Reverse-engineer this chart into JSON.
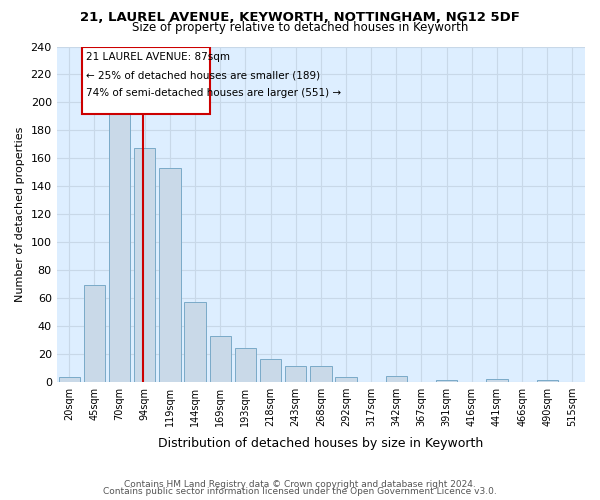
{
  "title1": "21, LAUREL AVENUE, KEYWORTH, NOTTINGHAM, NG12 5DF",
  "title2": "Size of property relative to detached houses in Keyworth",
  "xlabel": "Distribution of detached houses by size in Keyworth",
  "ylabel": "Number of detached properties",
  "footer1": "Contains HM Land Registry data © Crown copyright and database right 2024.",
  "footer2": "Contains public sector information licensed under the Open Government Licence v3.0.",
  "bin_labels": [
    "20sqm",
    "45sqm",
    "70sqm",
    "94sqm",
    "119sqm",
    "144sqm",
    "169sqm",
    "193sqm",
    "218sqm",
    "243sqm",
    "268sqm",
    "292sqm",
    "317sqm",
    "342sqm",
    "367sqm",
    "391sqm",
    "416sqm",
    "441sqm",
    "466sqm",
    "490sqm",
    "515sqm"
  ],
  "bar_heights": [
    3,
    69,
    192,
    167,
    153,
    57,
    33,
    24,
    16,
    11,
    11,
    3,
    0,
    4,
    0,
    1,
    0,
    2,
    0,
    1,
    0
  ],
  "bar_color": "#c9d9e8",
  "bar_edge_color": "#7aaac8",
  "grid_color": "#c8d8e8",
  "property_label": "21 LAUREL AVENUE: 87sqm",
  "annotation_line1": "← 25% of detached houses are smaller (189)",
  "annotation_line2": "74% of semi-detached houses are larger (551) →",
  "red_line_color": "#cc0000",
  "annotation_box_color": "#cc0000",
  "ylim": [
    0,
    240
  ],
  "yticks": [
    0,
    20,
    40,
    60,
    80,
    100,
    120,
    140,
    160,
    180,
    200,
    220,
    240
  ],
  "red_line_x": 2.93,
  "plot_bg_color": "#ddeeff"
}
